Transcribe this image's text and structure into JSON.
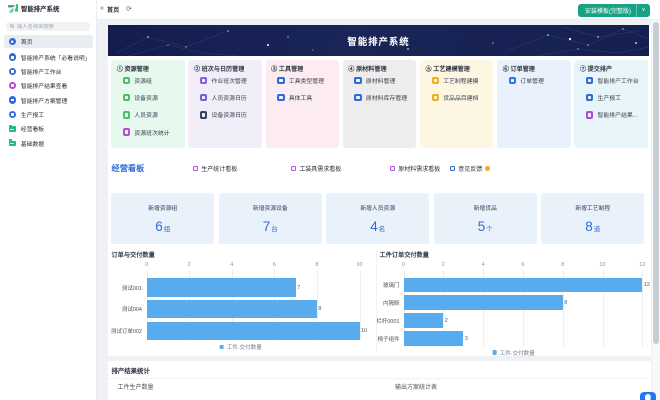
{
  "app": {
    "brand": "智能排产系统"
  },
  "sidebar": {
    "search_placeholder": "输入名称来搜索",
    "items": [
      {
        "label": "首页",
        "icon": "home-icon",
        "color": "#2e6bd9",
        "active": true
      },
      {
        "label": "智能排产系统「必看说明」",
        "icon": "doc-icon",
        "color": "#2e6bd9",
        "active": false
      },
      {
        "label": "智能排产工作台",
        "icon": "workbench-icon",
        "color": "#2e6bd9",
        "active": false
      },
      {
        "label": "智能排产结果查看",
        "icon": "result-icon",
        "color": "#bb3fd8",
        "active": false
      },
      {
        "label": "智能排产方案管理",
        "icon": "plan-icon",
        "color": "#2e6bd9",
        "active": false
      },
      {
        "label": "生产报工",
        "icon": "report-icon",
        "color": "#2e6bd9",
        "active": false
      },
      {
        "label": "经营看板",
        "icon": "folder-icon",
        "color": "#26b87c",
        "active": false
      },
      {
        "label": "基础数据",
        "icon": "folder-icon",
        "color": "#26b87c",
        "active": false
      }
    ]
  },
  "topbar": {
    "collapse_icon": "«",
    "tab": "首页",
    "refresh_icon": "⟳",
    "install_button": "安装模板(完整版)",
    "install_caret": "∨",
    "button_color": "#17a284"
  },
  "banner": {
    "title": "智能排产系统"
  },
  "modules": [
    {
      "num": "①",
      "title": "资源管理",
      "bg": "#e7f8ee",
      "items": [
        {
          "label": "资源组",
          "color": "#4cbf6a"
        },
        {
          "label": "设备资源",
          "color": "#4cbf6a"
        },
        {
          "label": "人员资源",
          "color": "#4cbf6a"
        },
        {
          "label": "资源班次统计",
          "color": "#b44fd8"
        }
      ]
    },
    {
      "num": "②",
      "title": "班次与日历管理",
      "bg": "#f1eefa",
      "items": [
        {
          "label": "作业班次管理",
          "color": "#8a5ce0"
        },
        {
          "label": "人员资源日历",
          "color": "#6f5fe0"
        },
        {
          "label": "设备资源日历",
          "color": "#39415c"
        }
      ]
    },
    {
      "num": "③",
      "title": "工具管理",
      "bg": "#fcecf2",
      "items": [
        {
          "label": "工具类型管理",
          "color": "#2e6bd9"
        },
        {
          "label": "具体工具",
          "color": "#2e6bd9"
        }
      ]
    },
    {
      "num": "④",
      "title": "原材料管理",
      "bg": "#ededee",
      "items": [
        {
          "label": "原材料管理",
          "color": "#2e6bd9"
        },
        {
          "label": "原材料库存管理",
          "color": "#2e6bd9"
        }
      ]
    },
    {
      "num": "⑤",
      "title": "工艺建模管理",
      "bg": "#fcf6e3",
      "items": [
        {
          "label": "工艺制程建模",
          "color": "#f0ad1d"
        },
        {
          "label": "货品品目建档",
          "color": "#f0ad1d"
        }
      ]
    },
    {
      "num": "⑥",
      "title": "订单管理",
      "bg": "#e8f1fc",
      "items": [
        {
          "label": "订单管理",
          "color": "#2e77e6"
        }
      ]
    },
    {
      "num": "⑦",
      "title": "提交排产",
      "bg": "#e7f5fb",
      "items": [
        {
          "label": "智能排产工作台",
          "color": "#2e6bd9"
        },
        {
          "label": "生产报工",
          "color": "#2e6bd9"
        },
        {
          "label": "智能排产结果...",
          "color": "#a44de0"
        }
      ]
    }
  ],
  "board": {
    "title": "经营看板",
    "links": [
      {
        "label": "生产统计看板",
        "color": "#b44fe0"
      },
      {
        "label": "工装具需求看板",
        "color": "#b44fe0"
      },
      {
        "label": "原材料需求看板",
        "color": "#b44fe0"
      },
      {
        "label": "意见反馈",
        "color": "#2e6bd9",
        "badge": "hot-dot-icon"
      }
    ]
  },
  "stats": [
    {
      "label": "新增资源组",
      "value": "6",
      "unit": "组"
    },
    {
      "label": "新增资源设备",
      "value": "7",
      "unit": "台"
    },
    {
      "label": "新增人员资源",
      "value": "4",
      "unit": "名"
    },
    {
      "label": "新增货品",
      "value": "5",
      "unit": "个"
    },
    {
      "label": "新增工艺制程",
      "value": "8",
      "unit": "道"
    }
  ],
  "chart_data": [
    {
      "type": "bar",
      "orientation": "horizontal",
      "title": "订单与交付数量",
      "categories": [
        "测试001",
        "测试004",
        "测试订单002"
      ],
      "values": [
        7,
        8,
        10
      ],
      "xlim": [
        0,
        10
      ],
      "ticks": [
        0,
        2,
        4,
        6,
        8,
        10
      ],
      "legend": "工件.交付数量",
      "legend_position": "bottom-center",
      "bar_color": "#58abec",
      "grid": true
    },
    {
      "type": "bar",
      "orientation": "horizontal",
      "title": "工件订单交付数量",
      "categories": [
        "玻璃门",
        "内隔断",
        "栏杆0001",
        "椅子组件"
      ],
      "values": [
        12,
        8,
        2,
        3
      ],
      "xlim": [
        0,
        12
      ],
      "ticks": [
        0,
        2,
        4,
        6,
        8,
        10,
        12
      ],
      "legend": "工件.交付数量",
      "legend_position": "bottom-center",
      "bar_color": "#58abec",
      "grid": true
    }
  ],
  "result_section": {
    "title": "排产结果统计",
    "panels": [
      "工件生产数量",
      "输出方案统计表"
    ]
  },
  "colors": {
    "accent_blue": "#2e6cd9",
    "bar_blue": "#58abec",
    "button_green": "#17a284",
    "banner_navy": "#17214f",
    "stat_bg": "#e9f1fb",
    "app_bg": "#eff1f4"
  }
}
